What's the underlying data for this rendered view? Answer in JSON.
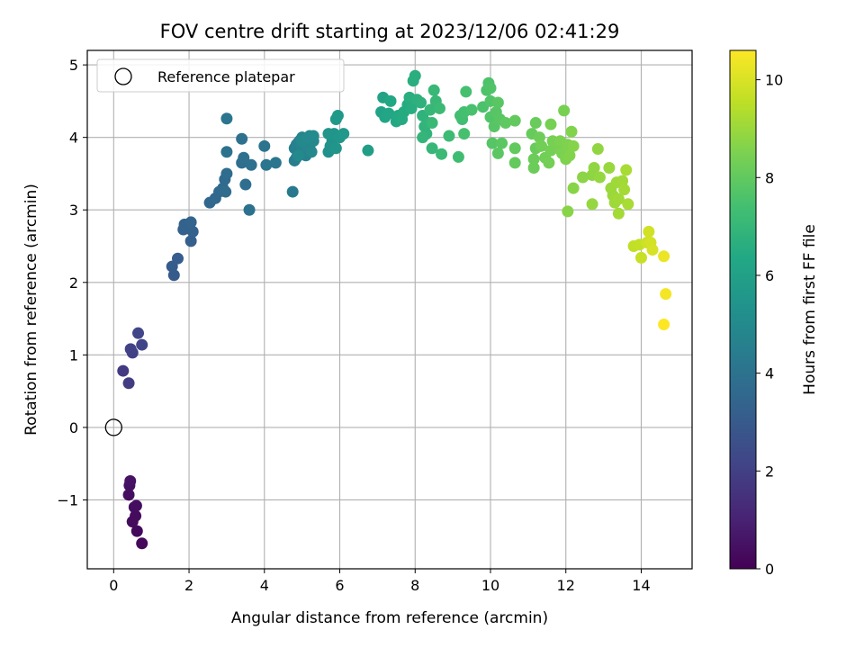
{
  "chart_data": {
    "type": "scatter",
    "title": "FOV centre drift starting at 2023/12/06 02:41:29",
    "xlabel": "Angular distance from reference (arcmin)",
    "ylabel": "Rotation from reference (arcmin)",
    "xlim": [
      -0.7,
      15.35
    ],
    "ylim": [
      -1.95,
      5.2
    ],
    "xticks": [
      0,
      2,
      4,
      6,
      8,
      10,
      12,
      14
    ],
    "yticks": [
      -1,
      0,
      1,
      2,
      3,
      4,
      5
    ],
    "grid": true,
    "legend": {
      "label": "Reference platepar",
      "placement": "top-left"
    },
    "reference_point": {
      "x": 0,
      "y": 0
    },
    "colorbar": {
      "label": "Hours from first FF file",
      "colormap": "viridis",
      "range": [
        0,
        10.6
      ],
      "ticks": [
        0,
        2,
        4,
        6,
        8,
        10
      ]
    },
    "points": [
      [
        0.75,
        -1.6,
        0.2
      ],
      [
        0.62,
        -1.43,
        0.25
      ],
      [
        0.58,
        -1.22,
        0.3
      ],
      [
        0.5,
        -1.3,
        0.3
      ],
      [
        0.55,
        -1.1,
        0.35
      ],
      [
        0.6,
        -1.08,
        0.35
      ],
      [
        0.4,
        -0.93,
        0.4
      ],
      [
        0.42,
        -0.8,
        0.45
      ],
      [
        0.44,
        -0.74,
        0.5
      ],
      [
        0.25,
        0.78,
        1.8
      ],
      [
        0.4,
        0.61,
        1.9
      ],
      [
        0.5,
        1.03,
        2.0
      ],
      [
        0.45,
        1.08,
        2.05
      ],
      [
        0.75,
        1.14,
        2.15
      ],
      [
        0.65,
        1.3,
        2.2
      ],
      [
        1.6,
        2.1,
        3.0
      ],
      [
        1.55,
        2.22,
        3.05
      ],
      [
        1.7,
        2.33,
        3.1
      ],
      [
        2.05,
        2.57,
        3.2
      ],
      [
        1.85,
        2.73,
        3.25
      ],
      [
        1.95,
        2.75,
        3.3
      ],
      [
        2.1,
        2.7,
        3.3
      ],
      [
        1.88,
        2.8,
        3.35
      ],
      [
        2.05,
        2.83,
        3.4
      ],
      [
        2.55,
        3.1,
        3.5
      ],
      [
        2.7,
        3.16,
        3.55
      ],
      [
        2.8,
        3.25,
        3.6
      ],
      [
        2.9,
        3.3,
        3.65
      ],
      [
        2.95,
        3.42,
        3.7
      ],
      [
        3.0,
        3.5,
        3.75
      ],
      [
        2.97,
        3.25,
        3.75
      ],
      [
        3.5,
        3.35,
        3.8
      ],
      [
        3.4,
        3.65,
        3.85
      ],
      [
        3.45,
        3.72,
        3.9
      ],
      [
        3.65,
        3.62,
        3.9
      ],
      [
        3.4,
        3.98,
        3.95
      ],
      [
        3.0,
        3.8,
        4.0
      ],
      [
        3.6,
        3.0,
        4.0
      ],
      [
        4.0,
        3.88,
        4.05
      ],
      [
        4.05,
        3.62,
        4.1
      ],
      [
        4.3,
        3.65,
        4.15
      ],
      [
        3.0,
        4.26,
        4.1
      ],
      [
        4.75,
        3.25,
        4.3
      ],
      [
        4.8,
        3.68,
        4.45
      ],
      [
        4.85,
        3.72,
        4.5
      ],
      [
        4.9,
        3.8,
        4.5
      ],
      [
        4.8,
        3.85,
        4.55
      ],
      [
        4.85,
        3.9,
        4.6
      ],
      [
        4.9,
        3.93,
        4.6
      ],
      [
        4.95,
        3.96,
        4.65
      ],
      [
        5.0,
        3.88,
        4.65
      ],
      [
        5.05,
        3.82,
        4.7
      ],
      [
        5.1,
        3.75,
        4.7
      ],
      [
        5.0,
        4.0,
        4.75
      ],
      [
        5.15,
        3.92,
        4.75
      ],
      [
        5.2,
        4.02,
        4.8
      ],
      [
        5.25,
        3.97,
        4.8
      ],
      [
        5.1,
        3.88,
        4.85
      ],
      [
        5.2,
        3.85,
        4.85
      ],
      [
        5.3,
        3.95,
        4.9
      ],
      [
        5.25,
        3.8,
        4.9
      ],
      [
        4.9,
        3.75,
        4.95
      ],
      [
        5.0,
        3.95,
        4.95
      ],
      [
        5.15,
        4.0,
        5.0
      ],
      [
        5.3,
        4.02,
        5.0
      ],
      [
        5.7,
        3.8,
        5.3
      ],
      [
        5.75,
        3.88,
        5.35
      ],
      [
        5.8,
        3.95,
        5.4
      ],
      [
        5.85,
        4.05,
        5.45
      ],
      [
        5.7,
        4.05,
        5.5
      ],
      [
        5.9,
        3.85,
        5.5
      ],
      [
        6.0,
        4.0,
        5.55
      ],
      [
        6.1,
        4.05,
        5.6
      ],
      [
        5.9,
        4.25,
        5.6
      ],
      [
        5.95,
        4.3,
        5.65
      ],
      [
        6.75,
        3.82,
        5.9
      ],
      [
        7.1,
        4.35,
        6.1
      ],
      [
        7.15,
        4.55,
        6.15
      ],
      [
        7.2,
        4.28,
        6.2
      ],
      [
        7.3,
        4.33,
        6.25
      ],
      [
        7.35,
        4.5,
        6.3
      ],
      [
        7.5,
        4.22,
        6.35
      ],
      [
        7.55,
        4.3,
        6.4
      ],
      [
        7.65,
        4.25,
        6.45
      ],
      [
        7.7,
        4.35,
        6.5
      ],
      [
        7.8,
        4.45,
        6.5
      ],
      [
        7.9,
        4.4,
        6.55
      ],
      [
        7.85,
        4.55,
        6.6
      ],
      [
        7.95,
        4.78,
        6.6
      ],
      [
        8.0,
        4.85,
        6.65
      ],
      [
        8.05,
        4.52,
        6.7
      ],
      [
        8.15,
        4.48,
        6.75
      ],
      [
        8.2,
        4.3,
        6.8
      ],
      [
        8.25,
        4.15,
        6.85
      ],
      [
        8.3,
        4.05,
        6.85
      ],
      [
        8.35,
        4.2,
        6.9
      ],
      [
        8.2,
        4.0,
        6.95
      ],
      [
        8.4,
        4.38,
        7.0
      ],
      [
        8.45,
        3.85,
        7.0
      ],
      [
        8.5,
        4.65,
        7.05
      ],
      [
        8.55,
        4.5,
        7.05
      ],
      [
        8.45,
        4.2,
        7.1
      ],
      [
        8.65,
        4.4,
        7.15
      ],
      [
        8.7,
        3.77,
        7.15
      ],
      [
        8.9,
        4.02,
        7.2
      ],
      [
        9.15,
        3.73,
        7.3
      ],
      [
        9.2,
        4.3,
        7.35
      ],
      [
        9.25,
        4.25,
        7.35
      ],
      [
        9.3,
        4.35,
        7.4
      ],
      [
        9.35,
        4.63,
        7.45
      ],
      [
        9.3,
        4.05,
        7.45
      ],
      [
        9.5,
        4.38,
        7.5
      ],
      [
        9.8,
        4.42,
        7.55
      ],
      [
        9.9,
        4.65,
        7.6
      ],
      [
        9.95,
        4.75,
        7.6
      ],
      [
        10.0,
        4.68,
        7.65
      ],
      [
        10.0,
        4.5,
        7.7
      ],
      [
        10.0,
        4.28,
        7.7
      ],
      [
        10.05,
        3.92,
        7.75
      ],
      [
        10.1,
        4.15,
        7.8
      ],
      [
        10.15,
        4.35,
        7.8
      ],
      [
        10.2,
        4.48,
        7.85
      ],
      [
        10.25,
        4.25,
        7.85
      ],
      [
        10.2,
        3.78,
        7.9
      ],
      [
        10.3,
        3.92,
        7.9
      ],
      [
        10.4,
        4.2,
        7.95
      ],
      [
        10.65,
        4.23,
        8.0
      ],
      [
        10.65,
        3.85,
        8.0
      ],
      [
        10.65,
        3.65,
        8.05
      ],
      [
        11.1,
        4.05,
        8.1
      ],
      [
        11.2,
        4.2,
        8.15
      ],
      [
        11.2,
        3.85,
        8.15
      ],
      [
        11.15,
        3.7,
        8.2
      ],
      [
        11.15,
        3.58,
        8.2
      ],
      [
        11.3,
        4.0,
        8.25
      ],
      [
        11.35,
        3.88,
        8.3
      ],
      [
        11.45,
        3.72,
        8.3
      ],
      [
        11.55,
        3.65,
        8.35
      ],
      [
        11.6,
        3.82,
        8.35
      ],
      [
        11.65,
        3.95,
        8.4
      ],
      [
        11.6,
        4.18,
        8.4
      ],
      [
        11.8,
        3.85,
        8.45
      ],
      [
        11.85,
        3.95,
        8.5
      ],
      [
        11.9,
        3.78,
        8.5
      ],
      [
        11.95,
        4.37,
        8.45
      ],
      [
        12.0,
        3.7,
        8.55
      ],
      [
        12.05,
        3.9,
        8.55
      ],
      [
        12.1,
        3.75,
        8.6
      ],
      [
        12.15,
        4.08,
        8.6
      ],
      [
        12.2,
        3.88,
        8.65
      ],
      [
        12.05,
        2.98,
        8.7
      ],
      [
        12.2,
        3.3,
        8.7
      ],
      [
        12.45,
        3.45,
        8.75
      ],
      [
        12.7,
        3.48,
        8.8
      ],
      [
        12.75,
        3.58,
        8.85
      ],
      [
        12.85,
        3.84,
        8.85
      ],
      [
        12.9,
        3.45,
        8.9
      ],
      [
        12.7,
        3.08,
        8.9
      ],
      [
        13.15,
        3.58,
        8.95
      ],
      [
        13.2,
        3.3,
        9.0
      ],
      [
        13.25,
        3.2,
        9.0
      ],
      [
        13.3,
        3.1,
        9.05
      ],
      [
        13.35,
        3.38,
        9.05
      ],
      [
        13.4,
        3.15,
        9.1
      ],
      [
        13.5,
        3.4,
        9.1
      ],
      [
        13.55,
        3.28,
        9.15
      ],
      [
        13.4,
        2.95,
        9.15
      ],
      [
        13.6,
        3.55,
        9.2
      ],
      [
        13.65,
        3.08,
        9.2
      ],
      [
        13.8,
        2.5,
        9.6
      ],
      [
        13.95,
        2.52,
        9.65
      ],
      [
        14.0,
        2.34,
        9.7
      ],
      [
        14.15,
        2.55,
        9.8
      ],
      [
        14.2,
        2.7,
        9.85
      ],
      [
        14.25,
        2.55,
        9.9
      ],
      [
        14.3,
        2.45,
        9.95
      ],
      [
        14.6,
        2.36,
        10.3
      ],
      [
        14.65,
        1.84,
        10.45
      ],
      [
        14.6,
        1.42,
        10.6
      ]
    ]
  }
}
